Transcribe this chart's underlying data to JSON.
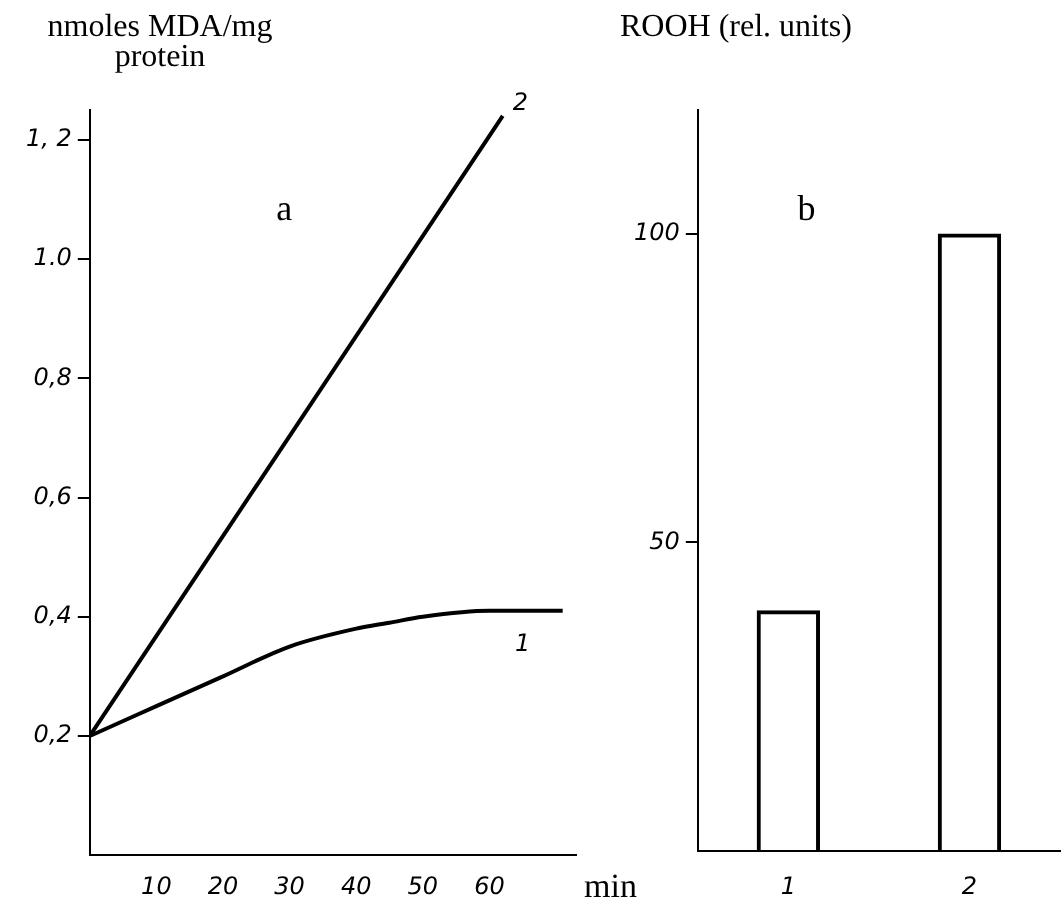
{
  "chart_data": [
    {
      "type": "line",
      "ylabel": "nmoles MDA/mg protein",
      "xlabel": "min",
      "annotations": [
        "a"
      ],
      "xlim": [
        0,
        73
      ],
      "xticks": [
        10,
        20,
        30,
        40,
        50,
        60
      ],
      "ylim": [
        0,
        1.25
      ],
      "yticks": [
        {
          "value": 0.2,
          "label": "0,2"
        },
        {
          "value": 0.4,
          "label": "0,4"
        },
        {
          "value": 0.6,
          "label": "0,6"
        },
        {
          "value": 0.8,
          "label": "0,8"
        },
        {
          "value": 1.0,
          "label": "1.0"
        },
        {
          "value": 1.2,
          "label": "1, 2"
        }
      ],
      "grid": false,
      "legend": false,
      "marker": "none",
      "line_style": "solid",
      "series": [
        {
          "name": "1",
          "color": "#000000",
          "x": [
            0,
            10,
            20,
            30,
            40,
            45,
            50,
            60,
            71
          ],
          "values": [
            0.2,
            0.25,
            0.3,
            0.35,
            0.38,
            0.39,
            0.4,
            0.41,
            0.41
          ]
        },
        {
          "name": "2",
          "color": "#000000",
          "x": [
            0,
            62
          ],
          "values": [
            0.2,
            1.24
          ]
        }
      ]
    },
    {
      "type": "bar",
      "ylabel": "ROOH (rel. units)",
      "annotations": [
        "b"
      ],
      "categories": [
        "1",
        "2"
      ],
      "values": [
        39,
        100
      ],
      "color": "#000000",
      "ylim": [
        0,
        120
      ],
      "yticks": [
        50,
        100
      ],
      "grid": false,
      "legend": false
    }
  ]
}
